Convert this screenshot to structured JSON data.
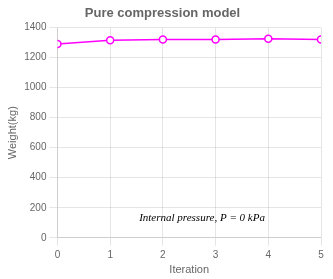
{
  "chart_data": {
    "type": "line",
    "title": "Pure compression model",
    "xlabel": "Iteration",
    "ylabel": "Weight(kg)",
    "x": [
      0,
      1,
      2,
      3,
      4,
      5
    ],
    "values": [
      1290,
      1315,
      1320,
      1320,
      1325,
      1320
    ],
    "color": "#ff00ff",
    "marker": "o",
    "xlim": [
      0,
      5
    ],
    "xticks": [
      0,
      1,
      2,
      3,
      4,
      5
    ],
    "ylim": [
      0,
      1400
    ],
    "yticks": [
      0,
      200,
      400,
      600,
      800,
      1000,
      1200,
      1400
    ],
    "grid": true,
    "annotations": [
      {
        "text": "Internal pressure, P = 0 kPa",
        "x": 1.55,
        "y": 115
      }
    ]
  }
}
